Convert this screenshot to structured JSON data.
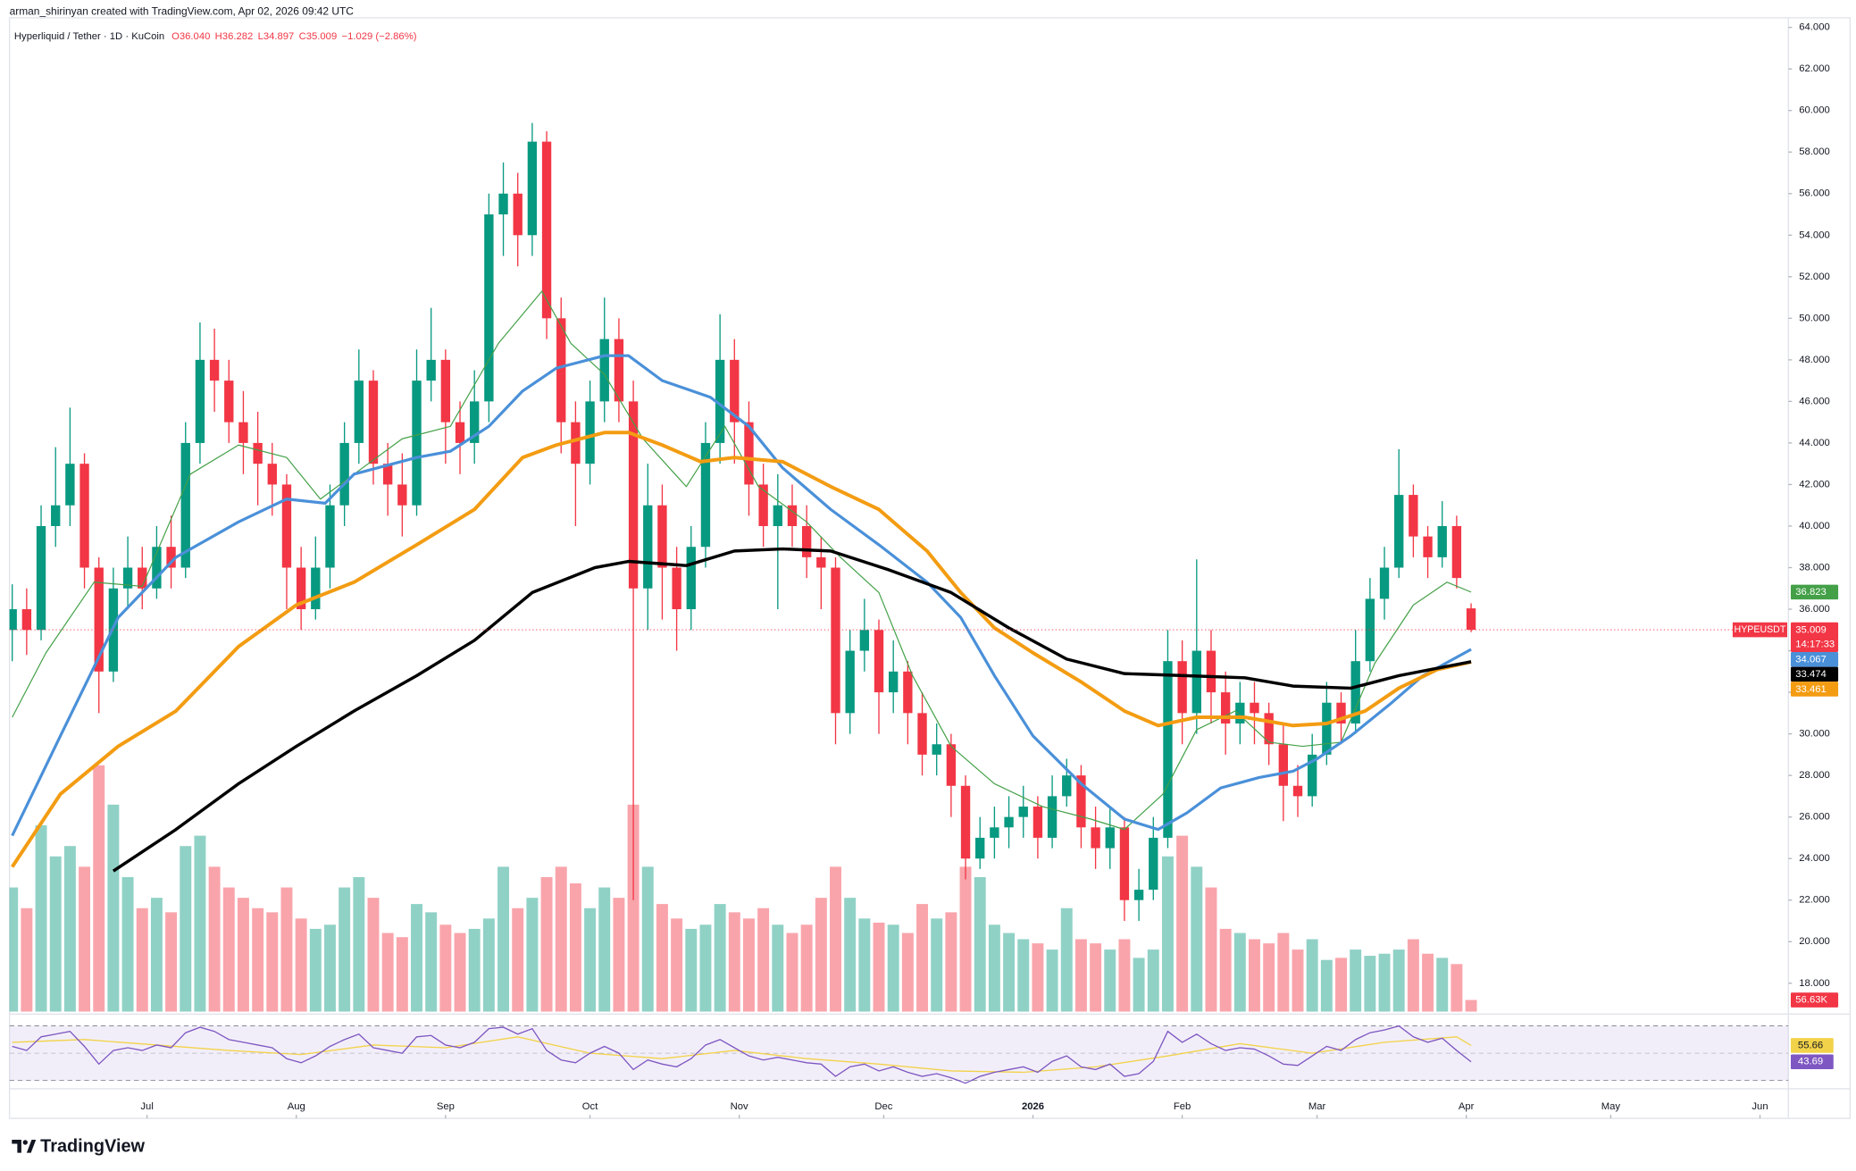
{
  "header": {
    "text": "arman_shirinyan created with TradingView.com, Apr 02, 2026 09:42 UTC"
  },
  "footer": {
    "logo": "TradingView"
  },
  "chart_data": {
    "type": "candlestick",
    "title": "Hyperliquid / Tether · 1D · KuCoin",
    "ohlc_labels": [
      "O36.040",
      "H36.282",
      "L34.897",
      "C35.009",
      "−1.029 (−2.86%)"
    ],
    "symbol": "HYPEUSDT",
    "countdown": "14:17:33",
    "up_color": "#089981",
    "down_color": "#f23645",
    "xlim": [
      -0.57,
      368.9
    ],
    "xticks": [
      {
        "value": 28,
        "label": "Jul"
      },
      {
        "value": 59,
        "label": "Aug"
      },
      {
        "value": 90,
        "label": "Sep"
      },
      {
        "value": 120,
        "label": "Oct"
      },
      {
        "value": 151,
        "label": "Nov"
      },
      {
        "value": 181,
        "label": "Dec"
      },
      {
        "value": 212,
        "label": "2026",
        "bold": true
      },
      {
        "value": 243,
        "label": "Feb"
      },
      {
        "value": 271,
        "label": "Mar"
      },
      {
        "value": 302,
        "label": "Apr"
      },
      {
        "value": 332,
        "label": "May"
      },
      {
        "value": 363,
        "label": "Jun"
      }
    ],
    "ylim": [
      16.63,
      64.46
    ],
    "yticks": [
      {
        "value": 18,
        "label": "18.000"
      },
      {
        "value": 20,
        "label": "20.000"
      },
      {
        "value": 22,
        "label": "22.000"
      },
      {
        "value": 24,
        "label": "24.000"
      },
      {
        "value": 26,
        "label": "26.000"
      },
      {
        "value": 28,
        "label": "28.000"
      },
      {
        "value": 30,
        "label": "30.000"
      },
      {
        "value": 32,
        "label": "32.000"
      },
      {
        "value": 34,
        "label": "34.000"
      },
      {
        "value": 36,
        "label": "36.000"
      },
      {
        "value": 38,
        "label": "38.000"
      },
      {
        "value": 40,
        "label": "40.000"
      },
      {
        "value": 42,
        "label": "42.000"
      },
      {
        "value": 44,
        "label": "44.000"
      },
      {
        "value": 46,
        "label": "46.000"
      },
      {
        "value": 48,
        "label": "48.000"
      },
      {
        "value": 50,
        "label": "50.000"
      },
      {
        "value": 52,
        "label": "52.000"
      },
      {
        "value": 54,
        "label": "54.000"
      },
      {
        "value": 56,
        "label": "56.000"
      },
      {
        "value": 58,
        "label": "58.000"
      },
      {
        "value": 60,
        "label": "60.000"
      },
      {
        "value": 62,
        "label": "62.000"
      },
      {
        "value": 64,
        "label": "64.000"
      }
    ],
    "candles": {
      "x": [
        0,
        3,
        6,
        9,
        12,
        15,
        18,
        21,
        24,
        27,
        30,
        33,
        36,
        39,
        42,
        45,
        48,
        51,
        54,
        57,
        60,
        63,
        66,
        69,
        72,
        75,
        78,
        81,
        84,
        87,
        90,
        93,
        96,
        99,
        102,
        105,
        108,
        111,
        114,
        117,
        120,
        123,
        126,
        129,
        132,
        135,
        138,
        141,
        144,
        147,
        150,
        153,
        156,
        159,
        162,
        165,
        168,
        171,
        174,
        177,
        180,
        183,
        186,
        189,
        192,
        195,
        198,
        201,
        204,
        207,
        210,
        213,
        216,
        219,
        222,
        225,
        228,
        231,
        234,
        237,
        240,
        243,
        246,
        249,
        252,
        255,
        258,
        261,
        264,
        267,
        270,
        273,
        276,
        279,
        282,
        285,
        288,
        291,
        294,
        297,
        300,
        303
      ],
      "open": [
        35,
        36,
        35,
        40,
        41,
        43,
        38,
        33,
        37,
        38,
        37,
        39,
        38,
        44,
        48,
        47,
        45,
        44,
        43,
        42,
        38,
        36,
        38,
        41,
        44,
        47,
        43,
        42,
        41,
        47,
        48,
        45,
        44,
        46,
        55,
        56,
        54,
        58.5,
        50,
        45,
        43,
        46,
        49,
        46,
        37,
        41,
        38,
        36,
        39,
        44,
        48,
        45,
        42,
        40,
        41,
        40,
        38.5,
        38,
        31,
        34,
        35,
        32,
        33,
        31,
        29,
        29.5,
        27.5,
        24,
        25,
        25.5,
        26,
        26.5,
        25,
        27,
        28,
        25.5,
        24.5,
        25.5,
        22,
        22.5,
        25,
        33.5,
        31,
        34,
        32,
        30.5,
        31.5,
        31,
        29.5,
        27.5,
        27,
        29,
        31.5,
        30.5,
        33.5,
        36.5,
        38,
        41.5,
        39.5,
        38.5,
        40,
        36.04
      ],
      "high": [
        37.2,
        37,
        41,
        43.8,
        45.7,
        43.5,
        38.5,
        38,
        39.5,
        39,
        40,
        40.5,
        45,
        49.8,
        49.5,
        48,
        46.5,
        45.5,
        44,
        42.5,
        39,
        39.5,
        42,
        45,
        48.5,
        47.5,
        44,
        43.5,
        48.5,
        50.5,
        48.5,
        46,
        47.5,
        56,
        57.5,
        57,
        59.4,
        59,
        51,
        46,
        47,
        51,
        50,
        47,
        43,
        42,
        39,
        40,
        45,
        50.2,
        49,
        46,
        43,
        42.5,
        42,
        41,
        39.5,
        38.5,
        35,
        36.5,
        35.5,
        34.5,
        33.5,
        32,
        30.5,
        30,
        28,
        26,
        26.5,
        27,
        27.5,
        27,
        28,
        28.8,
        28.5,
        26.5,
        26.5,
        26,
        23.5,
        26,
        35,
        34.5,
        38.4,
        35,
        33,
        32.5,
        32.5,
        31.5,
        30.5,
        28.5,
        30,
        32.5,
        32,
        35,
        37.5,
        39,
        43.7,
        42,
        40,
        41.2,
        40.5,
        36.282
      ],
      "low": [
        33.5,
        33.8,
        34.5,
        39,
        40,
        37,
        31,
        32.5,
        36,
        36,
        36.5,
        37,
        37.5,
        43,
        45.5,
        44,
        42.5,
        41,
        40.5,
        36,
        35,
        35.5,
        37,
        40,
        43,
        42,
        40.5,
        39.5,
        40.5,
        46,
        43,
        42.5,
        43,
        45,
        53,
        52.5,
        53,
        49,
        43.5,
        40,
        42,
        45,
        45,
        22,
        35,
        35.5,
        34,
        35,
        38,
        43,
        43,
        40.5,
        39,
        36,
        39,
        37.5,
        36,
        29.5,
        30,
        33,
        30,
        31,
        29.5,
        28,
        28,
        26,
        23,
        23.5,
        24,
        24.5,
        25,
        24,
        24.5,
        26.5,
        24.5,
        23.5,
        23.5,
        21,
        21,
        22,
        24.5,
        29.5,
        30,
        30.5,
        29,
        29.5,
        29.5,
        28.5,
        25.8,
        26,
        26.5,
        28.5,
        29.5,
        30,
        33,
        35.5,
        37.5,
        38.5,
        37.5,
        38,
        37,
        34.897
      ],
      "close": [
        36,
        35,
        40,
        41,
        43,
        38,
        33,
        37,
        38,
        37,
        39,
        38,
        44,
        48,
        47,
        45,
        44,
        43,
        42,
        38,
        36,
        38,
        41,
        44,
        47,
        43,
        42,
        41,
        47,
        48,
        45,
        44,
        46,
        55,
        56,
        54,
        58.5,
        50,
        45,
        43,
        46,
        49,
        46,
        37,
        41,
        38,
        36,
        39,
        44,
        48,
        45,
        42,
        40,
        41,
        40,
        38.5,
        38,
        31,
        34,
        35,
        32,
        33,
        31,
        29,
        29.5,
        27.5,
        24,
        25,
        25.5,
        26,
        26.5,
        25,
        27,
        28,
        25.5,
        24.5,
        25.5,
        22,
        22.5,
        25,
        33.5,
        31,
        34,
        32,
        30.5,
        31.5,
        31,
        29.5,
        27.5,
        27,
        29,
        31.5,
        30.5,
        33.5,
        36.5,
        38,
        41.5,
        39.5,
        38.5,
        40,
        37.5,
        35.009
      ]
    },
    "volume": {
      "ylim": [
        0,
        4800
      ],
      "last_label": "56.63K",
      "values": [
        600,
        500,
        900,
        750,
        800,
        700,
        1190,
        1000,
        650,
        500,
        550,
        480,
        800,
        850,
        700,
        600,
        550,
        500,
        480,
        600,
        450,
        400,
        420,
        600,
        650,
        550,
        380,
        360,
        520,
        480,
        420,
        380,
        400,
        450,
        700,
        500,
        550,
        650,
        700,
        620,
        500,
        600,
        550,
        1000,
        700,
        520,
        450,
        400,
        420,
        520,
        480,
        450,
        500,
        420,
        380,
        420,
        550,
        700,
        550,
        450,
        430,
        420,
        380,
        520,
        450,
        480,
        700,
        650,
        420,
        380,
        350,
        330,
        300,
        500,
        350,
        330,
        300,
        350,
        260,
        300,
        750,
        850,
        700,
        600,
        400,
        380,
        350,
        330,
        380,
        300,
        350,
        250,
        260,
        300,
        270,
        280,
        300,
        350,
        280,
        260,
        230,
        56.63
      ]
    },
    "moving_averages": [
      {
        "color": "#43a047",
        "width": 0.9,
        "x": [
          0,
          7,
          17,
          27,
          37,
          47,
          57,
          64,
          71,
          81,
          91,
          101,
          110,
          116,
          123,
          131,
          140,
          148,
          155,
          165,
          172,
          180,
          187,
          195,
          204,
          214,
          224,
          231,
          239,
          246,
          254,
          261,
          268,
          276,
          283,
          291,
          298,
          303
        ],
        "values": [
          30.8,
          33.9,
          37.3,
          37.1,
          42.5,
          43.9,
          43.3,
          41.3,
          42.5,
          44.2,
          44.8,
          48.8,
          51.3,
          48.8,
          47.3,
          44.2,
          41.9,
          44.8,
          41.9,
          40.2,
          38.5,
          36.8,
          32.8,
          29.4,
          27.6,
          26.5,
          25.9,
          25.4,
          27.1,
          30.2,
          31.1,
          29.6,
          29.4,
          29.6,
          33.4,
          36.2,
          37.3,
          36.823
        ]
      },
      {
        "color": "#4a90d9",
        "width": 2.4,
        "x": [
          0,
          10,
          22,
          34,
          47,
          57,
          65,
          71,
          84,
          91,
          99,
          106,
          113,
          123,
          128,
          135,
          145,
          153,
          160,
          170,
          180,
          190,
          197,
          204,
          212,
          222,
          231,
          238,
          244,
          251,
          259,
          266,
          271,
          278,
          286,
          293,
          303
        ],
        "values": [
          25.1,
          29.9,
          35.6,
          38.5,
          40.2,
          41.3,
          41.1,
          42.5,
          43.3,
          43.6,
          44.8,
          46.5,
          47.6,
          48.2,
          48.2,
          47,
          46.2,
          44.8,
          42.8,
          40.8,
          39.1,
          37.3,
          35.6,
          32.8,
          29.9,
          27.6,
          25.9,
          25.4,
          26.2,
          27.4,
          27.9,
          28.2,
          28.8,
          29.9,
          31.4,
          32.8,
          34.067
        ]
      },
      {
        "color": "#f39c12",
        "width": 3,
        "x": [
          0,
          10,
          22,
          34,
          47,
          59,
          71,
          84,
          96,
          106,
          113,
          123,
          128,
          135,
          143,
          150,
          160,
          170,
          180,
          190,
          197,
          204,
          212,
          222,
          231,
          238,
          246,
          256,
          266,
          273,
          281,
          288,
          296,
          303
        ],
        "values": [
          23.6,
          27.1,
          29.4,
          31.1,
          34.2,
          36.2,
          37.3,
          39.1,
          40.8,
          43.3,
          43.9,
          44.5,
          44.5,
          43.9,
          43.1,
          43.3,
          43.1,
          41.9,
          40.8,
          38.8,
          36.8,
          35.1,
          33.9,
          32.5,
          31.1,
          30.4,
          30.8,
          30.8,
          30.4,
          30.5,
          31.1,
          32.2,
          33.1,
          33.461
        ]
      },
      {
        "color": "#000000",
        "width": 2.6,
        "x": [
          21,
          34,
          47,
          59,
          71,
          84,
          96,
          108,
          121,
          128,
          140,
          150,
          160,
          170,
          182,
          195,
          207,
          219,
          231,
          244,
          256,
          266,
          278,
          288,
          303
        ],
        "values": [
          23.4,
          25.4,
          27.6,
          29.4,
          31.1,
          32.8,
          34.5,
          36.8,
          38,
          38.3,
          38.1,
          38.8,
          38.9,
          38.8,
          37.9,
          36.8,
          35.1,
          33.6,
          32.9,
          32.8,
          32.7,
          32.3,
          32.2,
          32.8,
          33.474
        ]
      }
    ],
    "rsi": {
      "ylim": [
        23.9,
        78.7
      ],
      "levels": [
        30,
        50,
        70
      ],
      "color": "#7e57c2",
      "values": [
        55,
        52,
        62,
        64,
        66,
        55,
        42,
        52,
        54,
        52,
        56,
        54,
        65,
        69,
        66,
        60,
        58,
        56,
        54,
        46,
        43,
        48,
        55,
        60,
        64,
        54,
        52,
        50,
        62,
        63,
        56,
        54,
        58,
        68,
        69,
        64,
        68,
        52,
        45,
        43,
        50,
        55,
        50,
        38,
        45,
        42,
        40,
        46,
        56,
        60,
        54,
        48,
        45,
        47,
        45,
        43,
        42,
        33,
        40,
        42,
        37,
        40,
        36,
        33,
        35,
        32,
        28,
        33,
        36,
        38,
        40,
        36,
        44,
        48,
        40,
        38,
        42,
        33,
        35,
        44,
        66,
        58,
        64,
        57,
        52,
        54,
        53,
        48,
        42,
        41,
        48,
        55,
        52,
        60,
        65,
        67,
        70,
        62,
        58,
        61,
        52,
        43.69
      ],
      "ma": {
        "color": "#f2d249",
        "x": [
          0,
          15,
          30,
          45,
          60,
          75,
          90,
          105,
          120,
          135,
          150,
          165,
          180,
          195,
          210,
          225,
          240,
          255,
          270,
          285,
          300,
          303
        ],
        "values": [
          58,
          60,
          56,
          52,
          49,
          56,
          54,
          62,
          50,
          46,
          52,
          46,
          42,
          37,
          36,
          40,
          48,
          57,
          50,
          58,
          62,
          55.66
        ]
      }
    }
  }
}
